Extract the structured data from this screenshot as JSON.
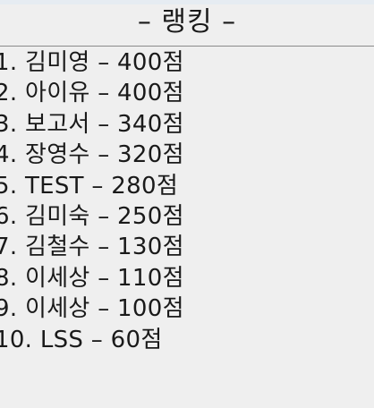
{
  "header": {
    "title": "– 랭킹 –"
  },
  "ranking": [
    "1. 김미영 – 400점",
    "2. 아이유 – 400점",
    "3. 보고서 – 340점",
    "4. 장영수 – 320점",
    "5. TEST – 280점",
    "6. 김미숙 – 250점",
    "7. 김철수 – 130점",
    "8. 이세상 – 110점",
    "9. 이세상 – 100점",
    "10. LSS – 60점"
  ]
}
